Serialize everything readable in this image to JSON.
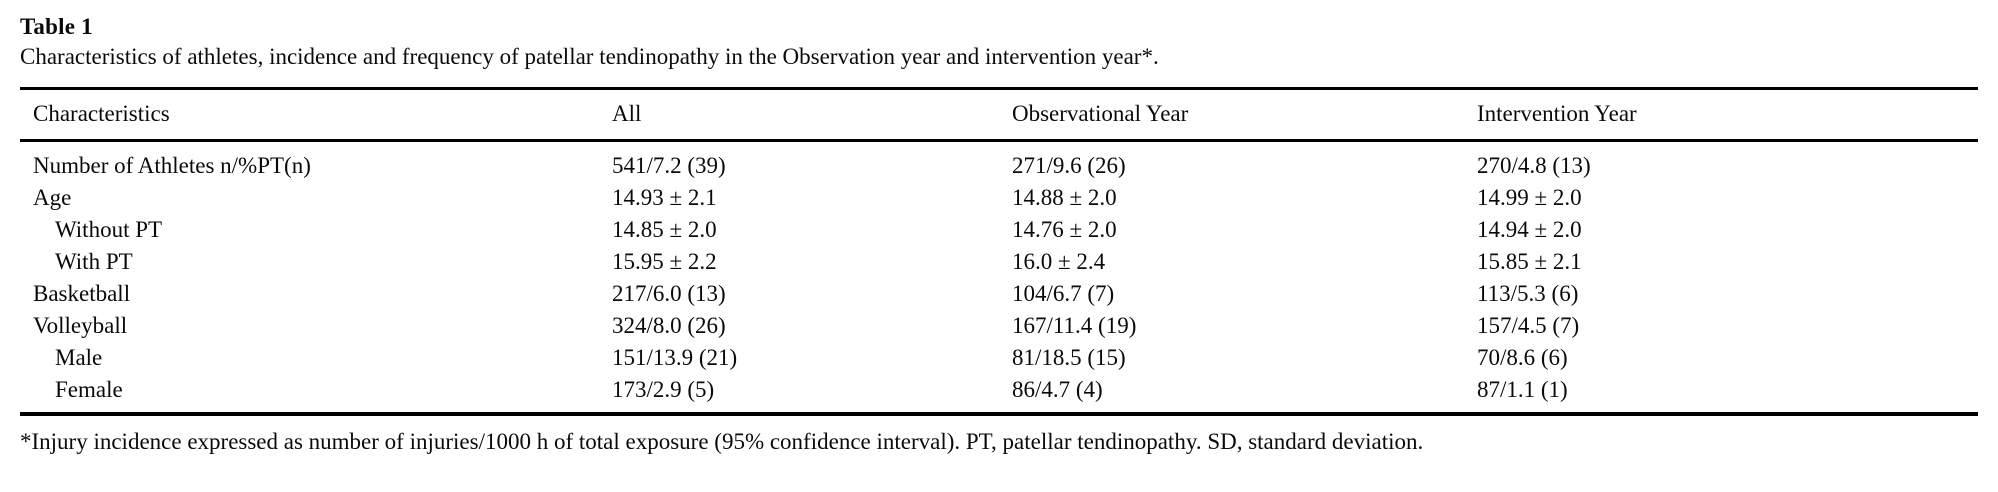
{
  "table": {
    "label": "Table 1",
    "caption": "Characteristics of athletes, incidence and frequency of patellar tendinopathy in the Observation year and intervention year*.",
    "columns": [
      "Characteristics",
      "All",
      "Observational Year",
      "Intervention Year"
    ],
    "rows": [
      {
        "label": "Number of Athletes n/%PT(n)",
        "all": "541/7.2 (39)",
        "observational": "271/9.6 (26)",
        "intervention": "270/4.8 (13)"
      },
      {
        "label": "Age",
        "all": "14.93 ± 2.1",
        "observational": "14.88 ± 2.0",
        "intervention": "14.99 ± 2.0"
      },
      {
        "label": "Without PT",
        "all": "14.85 ± 2.0",
        "observational": "14.76 ± 2.0",
        "intervention": "14.94 ± 2.0"
      },
      {
        "label": "With PT",
        "all": "15.95 ± 2.2",
        "observational": "16.0 ± 2.4",
        "intervention": "15.85 ± 2.1"
      },
      {
        "label": "Basketball",
        "all": "217/6.0 (13)",
        "observational": "104/6.7 (7)",
        "intervention": "113/5.3 (6)"
      },
      {
        "label": "Volleyball",
        "all": "324/8.0 (26)",
        "observational": "167/11.4 (19)",
        "intervention": "157/4.5 (7)"
      },
      {
        "label": "Male",
        "all": "151/13.9 (21)",
        "observational": "81/18.5 (15)",
        "intervention": "70/8.6 (6)"
      },
      {
        "label": "Female",
        "all": "173/2.9 (5)",
        "observational": "86/4.7 (4)",
        "intervention": "87/1.1 (1)"
      }
    ],
    "footnote": "*Injury incidence expressed as number of injuries/1000 h of total exposure (95% confidence interval). PT, patellar tendinopathy. SD, standard deviation."
  }
}
